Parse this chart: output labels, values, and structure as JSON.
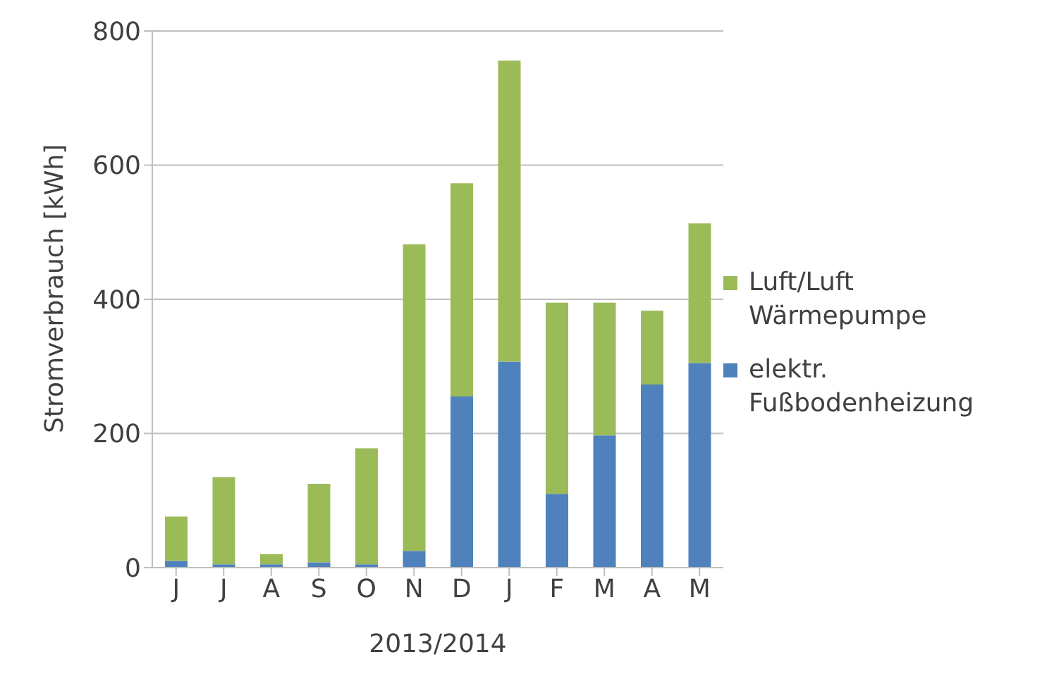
{
  "chart_data": {
    "type": "bar",
    "stacked": true,
    "categories": [
      "J",
      "J",
      "A",
      "S",
      "O",
      "N",
      "D",
      "J",
      "F",
      "M",
      "A",
      "M"
    ],
    "series": [
      {
        "name": "elektr. Fußbodenheizung",
        "color": "#4f81bd",
        "values": [
          10,
          5,
          5,
          8,
          5,
          25,
          255,
          307,
          110,
          197,
          273,
          305
        ]
      },
      {
        "name": "Luft/Luft Wärmepumpe",
        "color": "#9bbb59",
        "values": [
          66,
          130,
          15,
          117,
          173,
          457,
          318,
          449,
          285,
          198,
          110,
          208
        ]
      }
    ],
    "xlabel": "2013/2014",
    "ylabel": "Stromverbrauch [kWh]",
    "ylim": [
      0,
      800
    ],
    "yticks": [
      0,
      200,
      400,
      600,
      800
    ],
    "grid": "y",
    "legend": "right"
  }
}
